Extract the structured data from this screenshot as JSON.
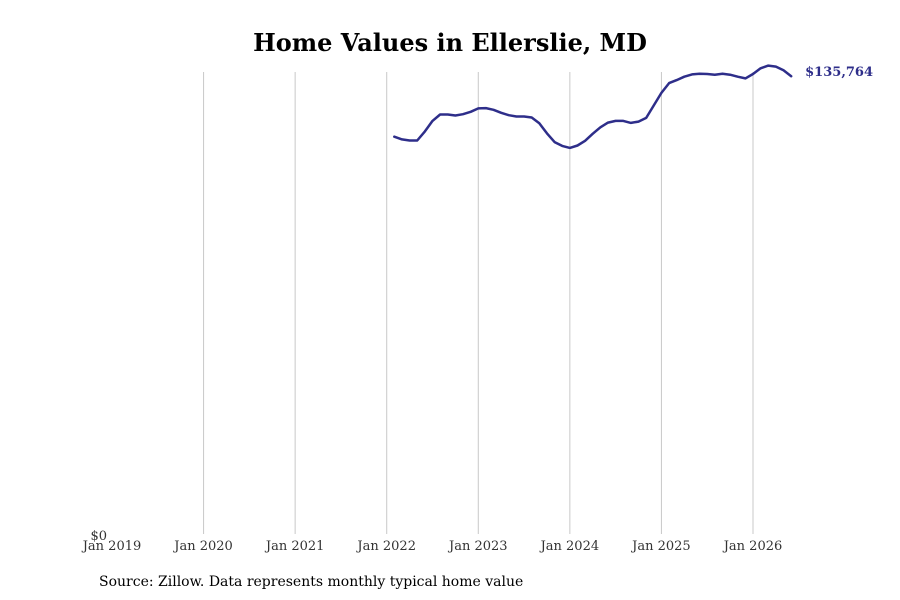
{
  "chart_data": {
    "type": "line",
    "title": "Home Values in Ellerslie, MD",
    "xlabel": "",
    "ylabel": "",
    "x_tick_labels": [
      "Jan 2019",
      "Jan 2020",
      "Jan 2021",
      "Jan 2022",
      "Jan 2023",
      "Jan 2024",
      "Jan 2025",
      "Jan 2026"
    ],
    "y_tick_labels": [
      "$0"
    ],
    "ylim": [
      0,
      137000
    ],
    "grid": "vertical",
    "line_color": "#2e2e8a",
    "end_label": "$135,764",
    "series": [
      {
        "x": [
          "2022-02",
          "2022-03",
          "2022-04",
          "2022-05",
          "2022-06",
          "2022-07",
          "2022-08",
          "2022-09",
          "2022-10",
          "2022-11",
          "2022-12",
          "2023-01",
          "2023-02",
          "2023-03",
          "2023-04",
          "2023-05",
          "2023-06",
          "2023-07",
          "2023-08",
          "2023-09",
          "2023-10",
          "2023-11",
          "2023-12",
          "2024-01",
          "2024-02",
          "2024-03",
          "2024-04",
          "2024-05",
          "2024-06",
          "2024-07",
          "2024-08",
          "2024-09",
          "2024-10",
          "2024-11",
          "2024-12",
          "2025-01",
          "2025-02",
          "2025-03",
          "2025-04",
          "2025-05",
          "2025-06",
          "2025-07",
          "2025-08",
          "2025-09",
          "2025-10",
          "2025-11",
          "2025-12",
          "2026-01",
          "2026-02",
          "2026-03",
          "2026-04",
          "2026-05",
          "2026-06"
        ],
        "y": [
          117800,
          117000,
          116700,
          116700,
          119400,
          122500,
          124400,
          124400,
          124100,
          124500,
          125200,
          126200,
          126300,
          125800,
          124900,
          124200,
          123800,
          123800,
          123500,
          121800,
          118800,
          116200,
          115100,
          114500,
          115200,
          116600,
          118700,
          120600,
          122000,
          122500,
          122500,
          121900,
          122300,
          123400,
          127100,
          130800,
          133700,
          134600,
          135600,
          136300,
          136500,
          136400,
          136200,
          136500,
          136200,
          135600,
          135100,
          136400,
          138100,
          138900,
          138600,
          137500,
          135764
        ]
      }
    ]
  },
  "source_text": "Source: Zillow. Data represents monthly typical home value"
}
